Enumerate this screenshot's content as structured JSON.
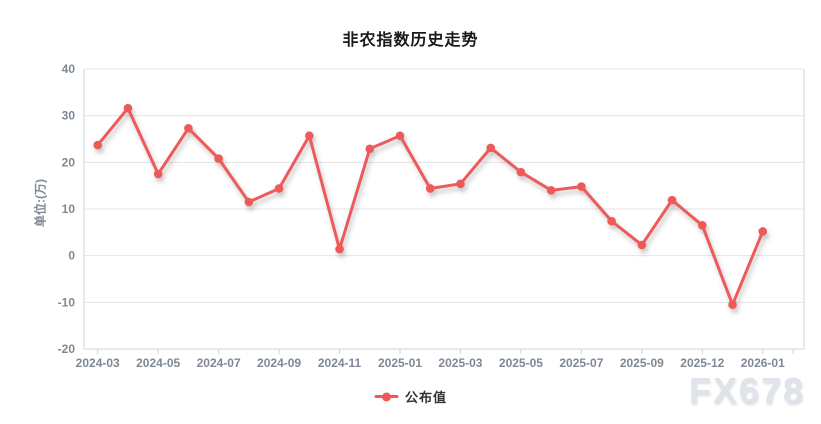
{
  "chart_data": {
    "type": "line",
    "title": "非农指数历史走势",
    "ylabel": "单位:(万)",
    "ylim": [
      -20,
      40
    ],
    "y_ticks": [
      40,
      30,
      20,
      10,
      0,
      -10,
      -20
    ],
    "x_tick_labels": [
      "2024-03",
      "2024-05",
      "2024-07",
      "2024-09",
      "2024-11",
      "2025-01",
      "2025-03",
      "2025-05",
      "2025-07",
      "2025-09",
      "2025-12",
      "2026-01"
    ],
    "series": [
      {
        "name": "公布值",
        "color": "#ee5a5a",
        "values": [
          23.7,
          31.6,
          17.5,
          27.3,
          20.8,
          11.5,
          14.4,
          25.7,
          1.4,
          22.9,
          25.7,
          14.4,
          15.4,
          23.1,
          17.9,
          14.0,
          14.8,
          7.4,
          2.3,
          11.9,
          6.5,
          -10.5,
          5.2
        ]
      }
    ],
    "grid": true,
    "legend_position": "bottom"
  },
  "legend": {
    "items": [
      {
        "label": "公布值",
        "color": "#ee5a5a"
      }
    ]
  },
  "watermark": "FX678",
  "colors": {
    "line": "#ee5a5a",
    "grid": "#e4e4e4",
    "axis": "#c9d6e3",
    "tick_label": "#7f8893",
    "title": "#1a1a1a",
    "legend_text": "#333333",
    "watermark": "#dfe4ea",
    "background": "#ffffff"
  }
}
